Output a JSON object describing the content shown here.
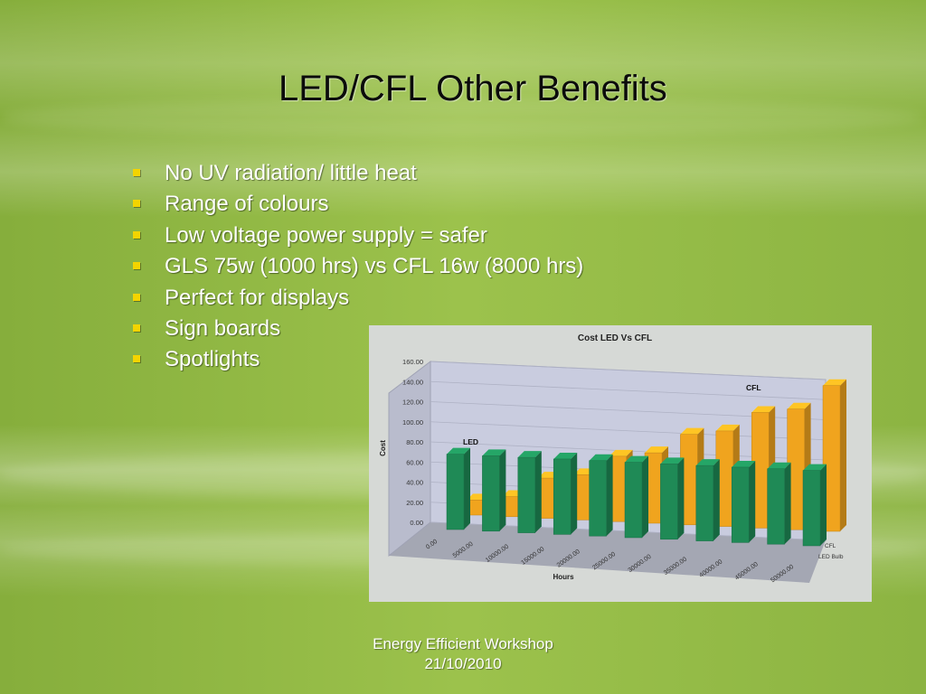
{
  "slide": {
    "title": "LED/CFL Other Benefits",
    "bullets": [
      "No UV radiation/ little heat",
      "Range of colours",
      "Low voltage power supply = safer",
      "GLS 75w (1000 hrs) vs CFL 16w (8000 hrs)",
      "Perfect for displays",
      "Sign boards",
      "Spotlights"
    ],
    "footer": {
      "line1": "Energy Efficient Workshop",
      "line2": "21/10/2010"
    },
    "colors": {
      "bullet_marker": "#f3d400",
      "led_series": "#1f8a56",
      "cfl_series": "#f0a41e"
    }
  },
  "chart_data": {
    "type": "bar",
    "title": "Cost LED Vs CFL",
    "xlabel": "Hours",
    "ylabel": "Cost",
    "ylim": [
      0,
      160
    ],
    "grid": true,
    "three_d": true,
    "legend_position": "right",
    "yticks": [
      "0.00",
      "20.00",
      "40.00",
      "60.00",
      "80.00",
      "100.00",
      "120.00",
      "140.00",
      "160.00"
    ],
    "categories": [
      "0.00",
      "5000.00",
      "10000.00",
      "15000.00",
      "20000.00",
      "25000.00",
      "30000.00",
      "35000.00",
      "40000.00",
      "45000.00",
      "50000.00"
    ],
    "series": [
      {
        "name": "LED Bulb",
        "label": "LED",
        "values": [
          75,
          75,
          75,
          75,
          75,
          75,
          75,
          75,
          75,
          75,
          75
        ]
      },
      {
        "name": "CFL",
        "label": "CFL",
        "values": [
          15,
          20,
          40,
          45,
          65,
          70,
          90,
          95,
          115,
          120,
          145
        ]
      }
    ]
  }
}
